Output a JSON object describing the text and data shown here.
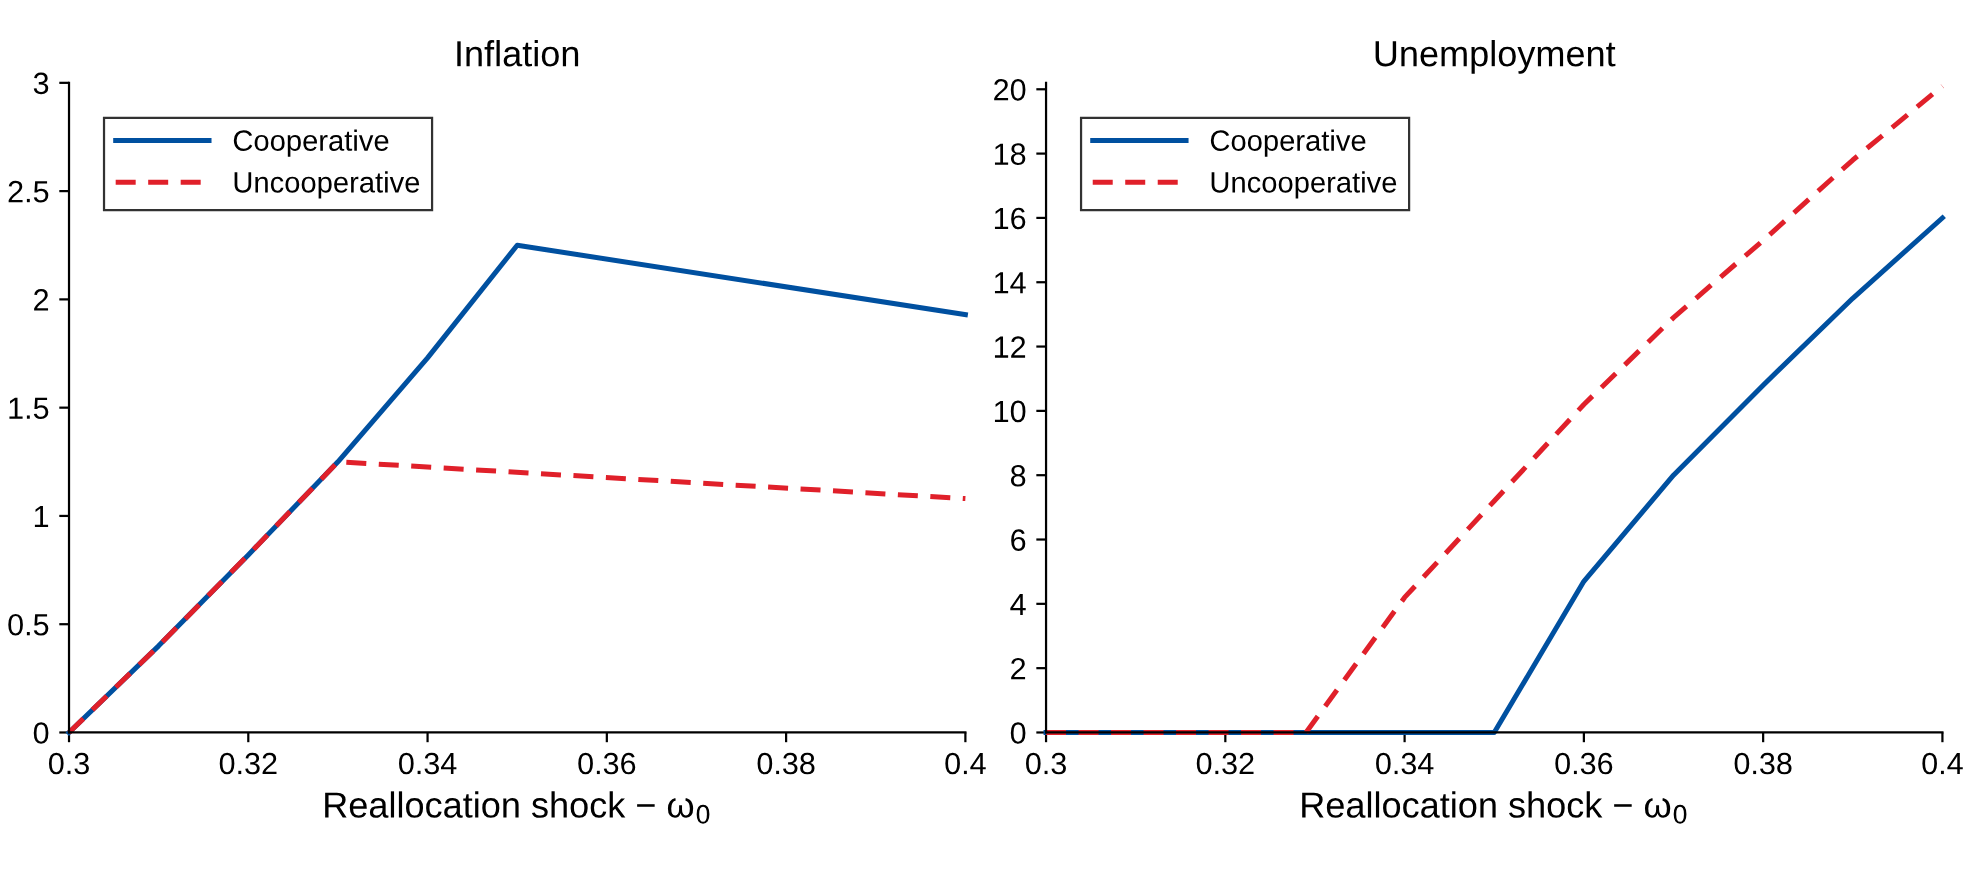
{
  "chart_data": [
    {
      "type": "line",
      "title": "Inflation",
      "xlabel": "Reallocation shock − ω$_{0}$",
      "xlim": [
        0.3,
        0.4
      ],
      "xticks": [
        0.3,
        0.32,
        0.34,
        0.36,
        0.38,
        0.4
      ],
      "ylim": [
        0,
        3
      ],
      "yticks": [
        0,
        0.5,
        1,
        1.5,
        2,
        2.5,
        3
      ],
      "legend": "top left",
      "grid": false,
      "series": [
        {
          "name": "Cooperative",
          "color": "#0050a0",
          "line_style": "solid",
          "x": [
            0.3,
            0.31,
            0.32,
            0.33,
            0.34,
            0.35,
            0.4
          ],
          "values": [
            0,
            0.4,
            0.82,
            1.25,
            1.73,
            2.25,
            1.93
          ]
        },
        {
          "name": "Uncooperative",
          "color": "#e0202a",
          "line_style": "dashed",
          "x": [
            0.3,
            0.31,
            0.32,
            0.33,
            0.4
          ],
          "values": [
            0,
            0.4,
            0.82,
            1.25,
            1.08
          ]
        }
      ]
    },
    {
      "type": "line",
      "title": "Unemployment",
      "xlabel": "Reallocation shock − ω$_{0}$",
      "xlim": [
        0.3,
        0.4
      ],
      "xticks": [
        0.3,
        0.32,
        0.34,
        0.36,
        0.38,
        0.4
      ],
      "ylim": [
        0,
        20.2
      ],
      "yticks": [
        0,
        2,
        4,
        6,
        8,
        10,
        12,
        14,
        16,
        18,
        20
      ],
      "legend": "top left",
      "grid": false,
      "series": [
        {
          "name": "Cooperative",
          "color": "#0050a0",
          "line_style": "solid",
          "x": [
            0.3,
            0.35,
            0.36,
            0.37,
            0.38,
            0.39,
            0.4
          ],
          "values": [
            0,
            0,
            4.7,
            8.0,
            10.8,
            13.5,
            16.0
          ]
        },
        {
          "name": "Uncooperative",
          "color": "#e0202a",
          "line_style": "dashed",
          "x": [
            0.3,
            0.329,
            0.34,
            0.35,
            0.36,
            0.37,
            0.38,
            0.39,
            0.4
          ],
          "values": [
            0,
            0,
            4.2,
            7.2,
            10.2,
            12.9,
            15.3,
            17.8,
            20.1
          ]
        }
      ]
    }
  ]
}
